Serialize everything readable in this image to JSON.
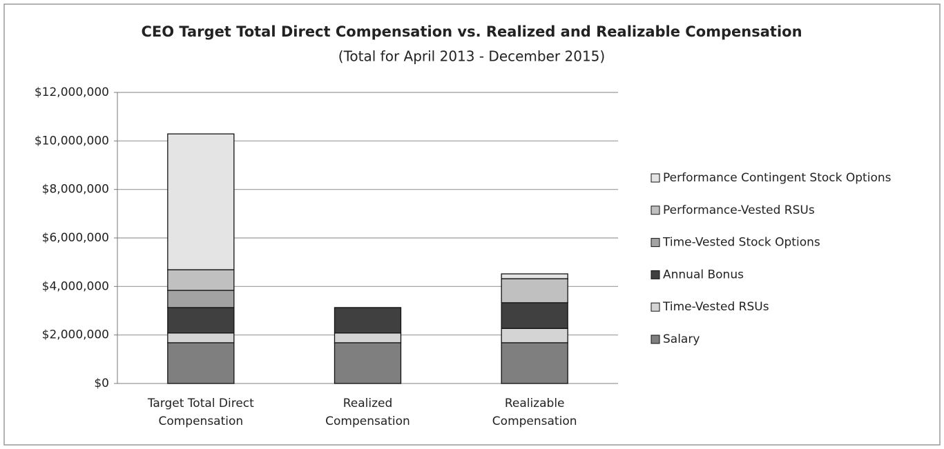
{
  "chart_data": {
    "type": "stacked_bar",
    "title": "CEO Target Total Direct Compensation vs. Realized and Realizable Compensation",
    "subtitle": "(Total for April 2013 - December 2015)",
    "categories": [
      "Target Total Direct Compensation",
      "Realized Compensation",
      "Realizable Compensation"
    ],
    "series": [
      {
        "name": "Salary",
        "color": "#7f7f7f",
        "values": [
          1680000,
          1680000,
          1680000
        ]
      },
      {
        "name": "Time-Vested RSUs",
        "color": "#d4d4d4",
        "values": [
          400000,
          400000,
          590000
        ]
      },
      {
        "name": "Annual Bonus",
        "color": "#404040",
        "values": [
          1050000,
          1050000,
          1060000
        ]
      },
      {
        "name": "Time-Vested Stock Options",
        "color": "#a3a3a3",
        "values": [
          710000,
          0,
          0
        ]
      },
      {
        "name": "Performance-Vested RSUs",
        "color": "#c0c0c0",
        "values": [
          850000,
          0,
          990000
        ]
      },
      {
        "name": "Performance Contingent Stock Options",
        "color": "#e4e4e4",
        "values": [
          5600000,
          0,
          200000
        ]
      }
    ],
    "ylim": [
      0,
      12000000
    ],
    "yticks": [
      {
        "value": 0,
        "label": "$0"
      },
      {
        "value": 2000000,
        "label": "$2,000,000"
      },
      {
        "value": 4000000,
        "label": "$4,000,000"
      },
      {
        "value": 6000000,
        "label": "$6,000,000"
      },
      {
        "value": 8000000,
        "label": "$8,000,000"
      },
      {
        "value": 10000000,
        "label": "$10,000,000"
      },
      {
        "value": 12000000,
        "label": "$12,000,000"
      }
    ],
    "grid": true,
    "legend": "right"
  }
}
